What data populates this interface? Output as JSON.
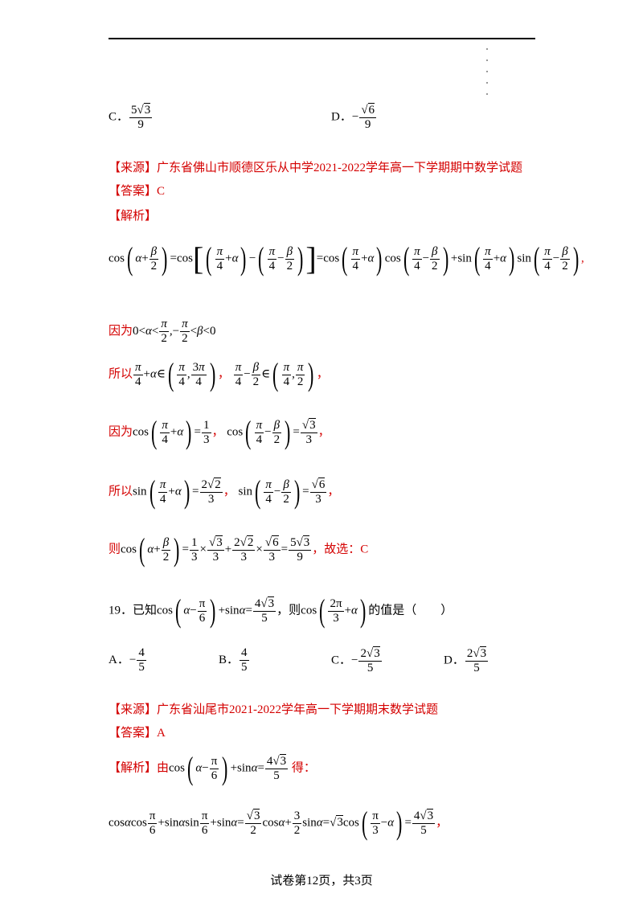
{
  "prev_options": {
    "c_label": "C．",
    "d_label": "D．"
  },
  "q18": {
    "source": "【来源】广东省佛山市顺德区乐从中学2021-2022学年高一下学期期中数学试题",
    "answer": "【答案】C",
    "analysis": "【解析】",
    "line_because1": "因为",
    "line_so1": "所以",
    "line_because2": "因为",
    "line_so2": "所以",
    "line_then": "则",
    "line_then_tail": "，故选：C"
  },
  "q19": {
    "number": "19．已知",
    "mid": "，则",
    "tail": "的值是（　　）",
    "options": [
      {
        "label": "A．"
      },
      {
        "label": "B．"
      },
      {
        "label": "C．"
      },
      {
        "label": "D．"
      }
    ],
    "source": "【来源】广东省汕尾市2021-2022学年高一下学期期末数学试题",
    "answer": "【答案】A",
    "analysis": "【解析】由",
    "analysis_tail": "得："
  },
  "footer": "试卷第12页，共3页"
}
